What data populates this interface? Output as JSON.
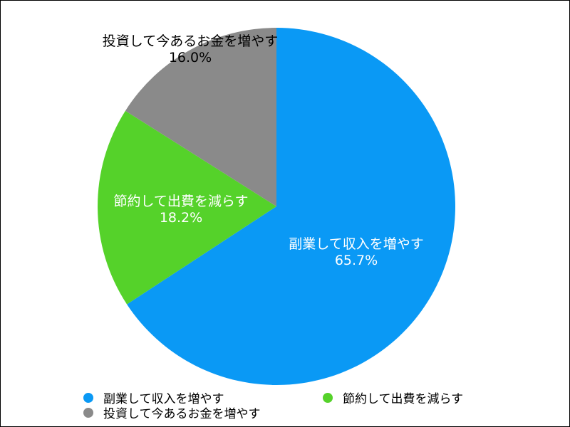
{
  "chart_data": {
    "type": "pie",
    "title": "",
    "categories": [
      "副業して収入を増やす",
      "節約して出費を減らす",
      "投資して今あるお金を増やす"
    ],
    "values": [
      65.7,
      18.2,
      16.0
    ],
    "value_labels": [
      "65.7%",
      "18.2%",
      "16.0%"
    ],
    "colors": [
      "#0a99f5",
      "#55d22a",
      "#8a8a8a"
    ],
    "label_colors": [
      "#ffffff",
      "#ffffff",
      "#000000"
    ],
    "start_angle": "12 o'clock",
    "direction": "clockwise",
    "legend_position": "bottom",
    "legend": [
      {
        "label": "副業して収入を増やす",
        "color": "#0a99f5"
      },
      {
        "label": "節約して出費を減らす",
        "color": "#55d22a"
      },
      {
        "label": "投資して今あるお金を増やす",
        "color": "#8a8a8a"
      }
    ]
  }
}
